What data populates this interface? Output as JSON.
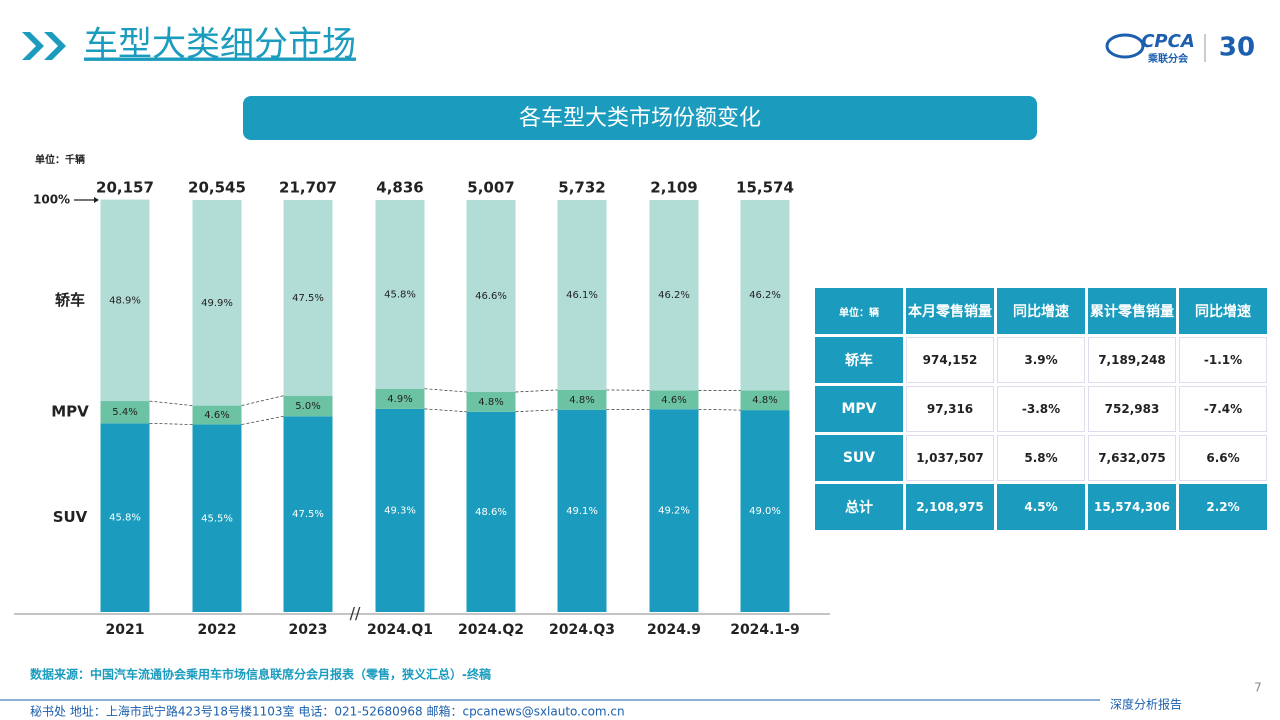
{
  "header": {
    "title": "车型大类细分市场",
    "logo": "CPCA",
    "logo_sub": "乘联分会",
    "anniversary": "30"
  },
  "chart_data": {
    "type": "bar",
    "stacked": true,
    "title": "各车型大类市场份额变化",
    "unit_label": "单位：千辆",
    "categories": [
      "2021",
      "2022",
      "2023",
      "2024.Q1",
      "2024.Q2",
      "2024.Q3",
      "2024.9",
      "2024.1-9"
    ],
    "totals": {
      "values": [
        20157,
        20545,
        21707,
        4836,
        5007,
        5732,
        2109,
        15574
      ],
      "value_labels": [
        "20,157",
        "20,545",
        "21,707",
        "4,836",
        "5,007",
        "5,732",
        "2,109",
        "15,574"
      ]
    },
    "series": [
      {
        "name": "SUV",
        "color": "#1b9cbe",
        "values": [
          45.8,
          45.5,
          47.5,
          49.3,
          48.6,
          49.1,
          49.2,
          49.0
        ],
        "value_labels": [
          "45.8%",
          "45.5%",
          "47.5%",
          "49.3%",
          "48.6%",
          "49.1%",
          "49.2%",
          "49.0%"
        ]
      },
      {
        "name": "MPV",
        "color": "#6cc3a3",
        "values": [
          5.4,
          4.6,
          5.0,
          4.9,
          4.8,
          4.8,
          4.6,
          4.8
        ],
        "value_labels": [
          "5.4%",
          "4.6%",
          "5.0%",
          "4.9%",
          "4.8%",
          "4.8%",
          "4.6%",
          "4.8%"
        ]
      },
      {
        "name": "轿车",
        "color": "#b2ddd6",
        "values": [
          48.9,
          49.9,
          47.5,
          45.8,
          46.6,
          46.1,
          46.2,
          46.2
        ],
        "value_labels": [
          "48.9%",
          "49.9%",
          "47.5%",
          "45.8%",
          "46.6%",
          "46.1%",
          "46.2%",
          "46.2%"
        ]
      }
    ],
    "ylim": [
      0,
      100
    ],
    "yticks": [
      {
        "value": 100,
        "label": "100%"
      }
    ]
  },
  "table": {
    "header": [
      "单位：辆",
      "本月零售销量",
      "同比增速",
      "累计零售销量",
      "同比增速"
    ],
    "rows": [
      [
        "轿车",
        "974,152",
        "3.9%",
        "7,189,248",
        "-1.1%"
      ],
      [
        "MPV",
        "97,316",
        "-3.8%",
        "752,983",
        "-7.4%"
      ],
      [
        "SUV",
        "1,037,507",
        "5.8%",
        "7,632,075",
        "6.6%"
      ],
      [
        "总计",
        "2,108,975",
        "4.5%",
        "15,574,306",
        "2.2%"
      ]
    ]
  },
  "source": "数据来源：中国汽车流通协会乘用车市场信息联席分会月报表（零售，狭义汇总）-终稿",
  "footer": {
    "contact": "秘书处  地址：上海市武宁路423号18号楼1103室  电话：021-52680968  邮箱：cpcanews@sxlauto.com.cn",
    "report": "深度分析报告",
    "page": "7"
  }
}
